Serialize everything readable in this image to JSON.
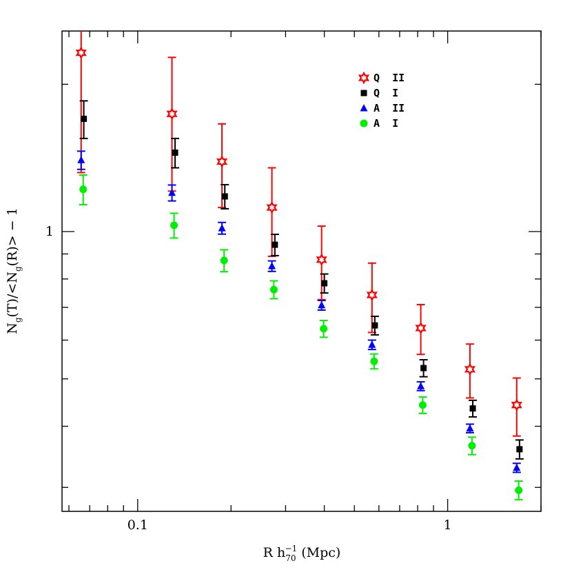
{
  "chart_data": {
    "type": "scatter",
    "xlabel": [
      "R h",
      "70",
      "−1",
      " (Mpc)"
    ],
    "ylabel": [
      "N",
      "g",
      "(T)/<N",
      "g",
      "(R)> − 1"
    ],
    "xscale": "log",
    "yscale": "log",
    "xlim": [
      0.057,
      2.0
    ],
    "ylim": [
      0.268,
      2.57
    ],
    "xticks": [
      0.1,
      1
    ],
    "yticks": [
      1
    ],
    "xminor_ticks": [
      0.06,
      0.07,
      0.08,
      0.09,
      0.2,
      0.3,
      0.4,
      0.5,
      0.6,
      0.7,
      0.8,
      0.9,
      2
    ],
    "yminor_ticks": [
      0.3,
      0.4,
      0.5,
      0.6,
      0.7,
      0.8,
      0.9,
      2
    ],
    "legend": "upper right",
    "series": [
      {
        "name": "Q  II",
        "color": "#ff0000",
        "marker": "star",
        "x": [
          0.0657,
          0.129,
          0.187,
          0.271,
          0.392,
          0.57,
          0.819,
          1.18,
          1.67
        ],
        "values": [
          2.32,
          1.74,
          1.39,
          1.12,
          0.876,
          0.742,
          0.635,
          0.523,
          0.442
        ],
        "errors": [
          1.0,
          0.53,
          0.27,
          0.23,
          0.15,
          0.12,
          0.074,
          0.066,
          0.06
        ]
      },
      {
        "name": "Q  I",
        "color": "#000000",
        "marker": "square",
        "x": [
          0.067,
          0.132,
          0.191,
          0.277,
          0.4,
          0.582,
          0.836,
          1.205,
          1.705
        ],
        "values": [
          1.7,
          1.45,
          1.18,
          0.94,
          0.784,
          0.643,
          0.526,
          0.435,
          0.359
        ],
        "errors": [
          0.15,
          0.1,
          0.067,
          0.047,
          0.035,
          0.028,
          0.021,
          0.017,
          0.016
        ]
      },
      {
        "name": "A  II",
        "color": "#0000ff",
        "marker": "triangle",
        "x": [
          0.0657,
          0.129,
          0.187,
          0.271,
          0.392,
          0.57,
          0.819,
          1.18,
          1.67
        ],
        "values": [
          1.4,
          1.2,
          1.016,
          0.85,
          0.707,
          0.587,
          0.483,
          0.396,
          0.329
        ],
        "errors": [
          0.06,
          0.045,
          0.028,
          0.021,
          0.016,
          0.013,
          0.01,
          0.008,
          0.007
        ]
      },
      {
        "name": "A  I",
        "color": "#00ee00",
        "marker": "circle",
        "x": [
          0.0667,
          0.131,
          0.19,
          0.275,
          0.398,
          0.579,
          0.831,
          1.198,
          1.695
        ],
        "values": [
          1.22,
          1.03,
          0.873,
          0.761,
          0.633,
          0.543,
          0.442,
          0.365,
          0.296
        ],
        "errors": [
          0.085,
          0.06,
          0.045,
          0.032,
          0.025,
          0.019,
          0.017,
          0.015,
          0.013
        ]
      }
    ]
  }
}
